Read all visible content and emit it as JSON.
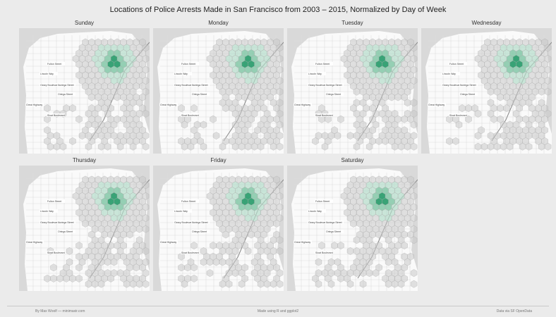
{
  "title": "Locations of Police Arrests Made in San Francisco from 2003 – 2015, Normalized by Day of Week",
  "colors": {
    "background": "#ebebeb",
    "water": "#d9d9d9",
    "land": "#fafafa",
    "street": "#dedede",
    "hex_fill": "#c9c9c9",
    "hex_low": "#b4dcc9",
    "hex_mid": "#7cc4a3",
    "hex_high": "#2e9e6f"
  },
  "map_labels": [
    "Lincoln Way",
    "Geary Boulevard",
    "Sloat Boulevard",
    "Fulton Street",
    "Noriega Street",
    "Ortega Street",
    "Great Highway"
  ],
  "chart_data": {
    "type": "heatmap",
    "description_units": "hexbin of arrest locations, normalized within each day",
    "facets": [
      "Sunday",
      "Monday",
      "Tuesday",
      "Wednesday",
      "Thursday",
      "Friday",
      "Saturday"
    ]
  },
  "footer": {
    "left": "By Max Woolf — minimaxir.com",
    "center": "Made using R and ggplot2",
    "right": "Data via SF OpenData"
  }
}
